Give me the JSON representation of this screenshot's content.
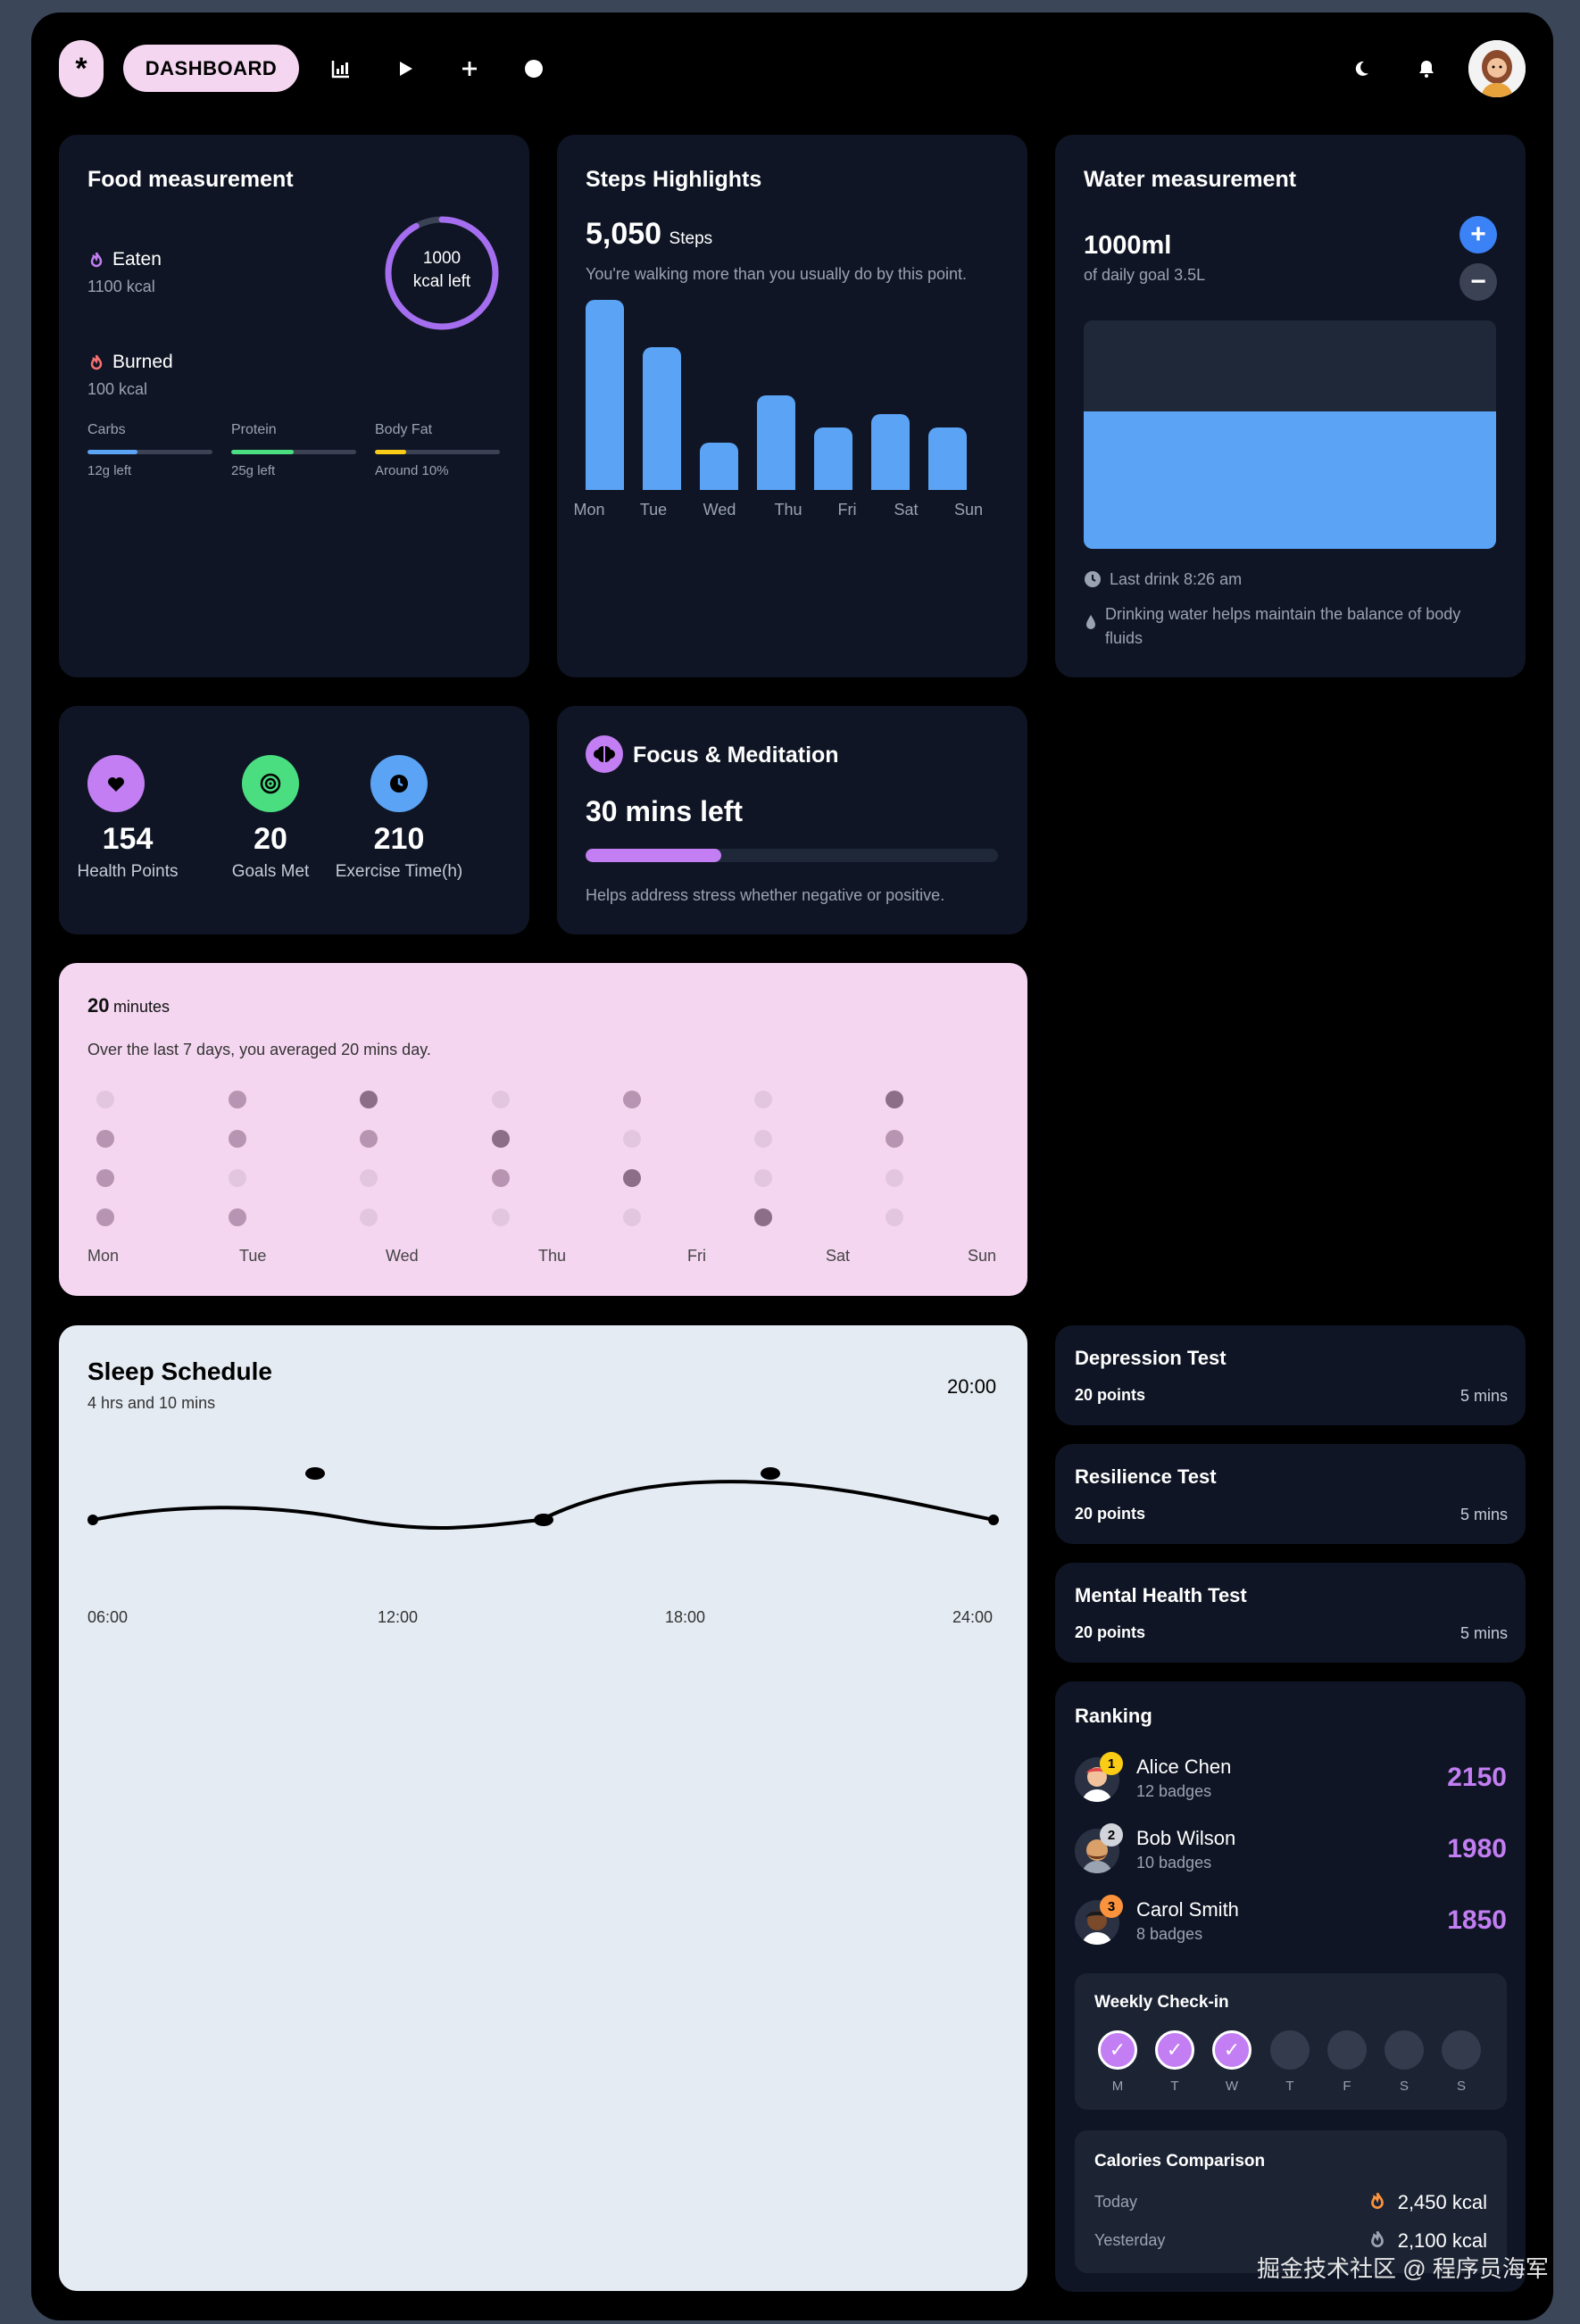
{
  "topbar": {
    "logo_glyph": "*",
    "dashboard_label": "DASHBOARD",
    "nav_icons": [
      "bar-chart-icon",
      "play-icon",
      "plus-icon",
      "circle-icon"
    ],
    "right_icons": [
      "moon-icon",
      "bell-icon"
    ]
  },
  "food": {
    "title": "Food measurement",
    "eaten_label": "Eaten",
    "eaten_value": "1100 kcal",
    "burned_label": "Burned",
    "burned_value": "100 kcal",
    "ring_value": "1000",
    "ring_unit": "kcal left",
    "ring_progress": 0.92,
    "macros": [
      {
        "label": "Carbs",
        "note": "12g left",
        "color": "#5ba3f5",
        "progress": 0.4
      },
      {
        "label": "Protein",
        "note": "25g left",
        "color": "#4ade80",
        "progress": 0.5
      },
      {
        "label": "Body Fat",
        "note": "Around 10%",
        "color": "#facc15",
        "progress": 0.25
      }
    ]
  },
  "steps": {
    "title": "Steps Highlights",
    "value": "5,050",
    "unit": "Steps",
    "description": "You're walking more than you usually do by this point.",
    "chart_data": {
      "type": "bar",
      "categories": [
        "Mon",
        "Tue",
        "Wed",
        "Thu",
        "Fri",
        "Sat",
        "Sun"
      ],
      "values": [
        100,
        75,
        25,
        50,
        33,
        40,
        33
      ],
      "ylim": [
        0,
        100
      ],
      "color": "#5ba3f5"
    }
  },
  "water": {
    "title": "Water measurement",
    "value": "1000ml",
    "goal": "of daily goal 3.5L",
    "fill_level": 0.6,
    "last_drink": "Last drink 8:26 am",
    "tip": "Drinking water helps maintain the balance of body fluids",
    "plus": "+",
    "minus": "−"
  },
  "stats": [
    {
      "value": "154",
      "label": "Health Points",
      "color": "#c27ef2",
      "icon": "heart-icon"
    },
    {
      "value": "20",
      "label": "Goals Met",
      "color": "#4ade80",
      "icon": "target-icon"
    },
    {
      "value": "210",
      "label": "Exercise Time(h)",
      "color": "#5ba3f5",
      "icon": "clock-icon"
    }
  ],
  "focus": {
    "title": "Focus & Meditation",
    "value": "30 mins left",
    "progress": 0.33,
    "description": "Helps address stress whether negative or positive."
  },
  "minutes": {
    "value": "20",
    "unit": "minutes",
    "description": "Over the last 7 days, you averaged 20 mins day.",
    "days": [
      "Mon",
      "Tue",
      "Wed",
      "Thu",
      "Fri",
      "Sat",
      "Sun"
    ],
    "grid": [
      [
        1,
        2,
        3,
        1,
        2,
        1,
        3
      ],
      [
        2,
        2,
        2,
        3,
        1,
        1,
        2
      ],
      [
        2,
        1,
        1,
        2,
        3,
        1,
        1
      ],
      [
        2,
        2,
        1,
        1,
        1,
        3,
        1
      ]
    ]
  },
  "sleep": {
    "title": "Sleep Schedule",
    "duration": "4 hrs and 10 mins",
    "time": "20:00",
    "x_labels": [
      "06:00",
      "12:00",
      "18:00",
      "24:00"
    ]
  },
  "tests": [
    {
      "title": "Depression Test",
      "points": "20 points",
      "time": "5 mins"
    },
    {
      "title": "Resilience Test",
      "points": "20 points",
      "time": "5 mins"
    },
    {
      "title": "Mental Health Test",
      "points": "20 points",
      "time": "5 mins"
    }
  ],
  "ranking": {
    "title": "Ranking",
    "entries": [
      {
        "rank": "1",
        "name": "Alice Chen",
        "badges": "12 badges",
        "score": "2150",
        "badge_color": "#facc15"
      },
      {
        "rank": "2",
        "name": "Bob Wilson",
        "badges": "10 badges",
        "score": "1980",
        "badge_color": "#d1d5db"
      },
      {
        "rank": "3",
        "name": "Carol Smith",
        "badges": "8 badges",
        "score": "1850",
        "badge_color": "#fb923c"
      }
    ]
  },
  "checkin": {
    "title": "Weekly Check-in",
    "days": [
      "M",
      "T",
      "W",
      "T",
      "F",
      "S",
      "S"
    ],
    "checked": [
      true,
      true,
      true,
      false,
      false,
      false,
      false
    ],
    "check_glyph": "✓"
  },
  "calories": {
    "title": "Calories Comparison",
    "rows": [
      {
        "label": "Today",
        "value": "2,450 kcal"
      },
      {
        "label": "Yesterday",
        "value": "2,100 kcal"
      }
    ]
  },
  "watermark": "掘金技术社区 @ 程序员海军"
}
